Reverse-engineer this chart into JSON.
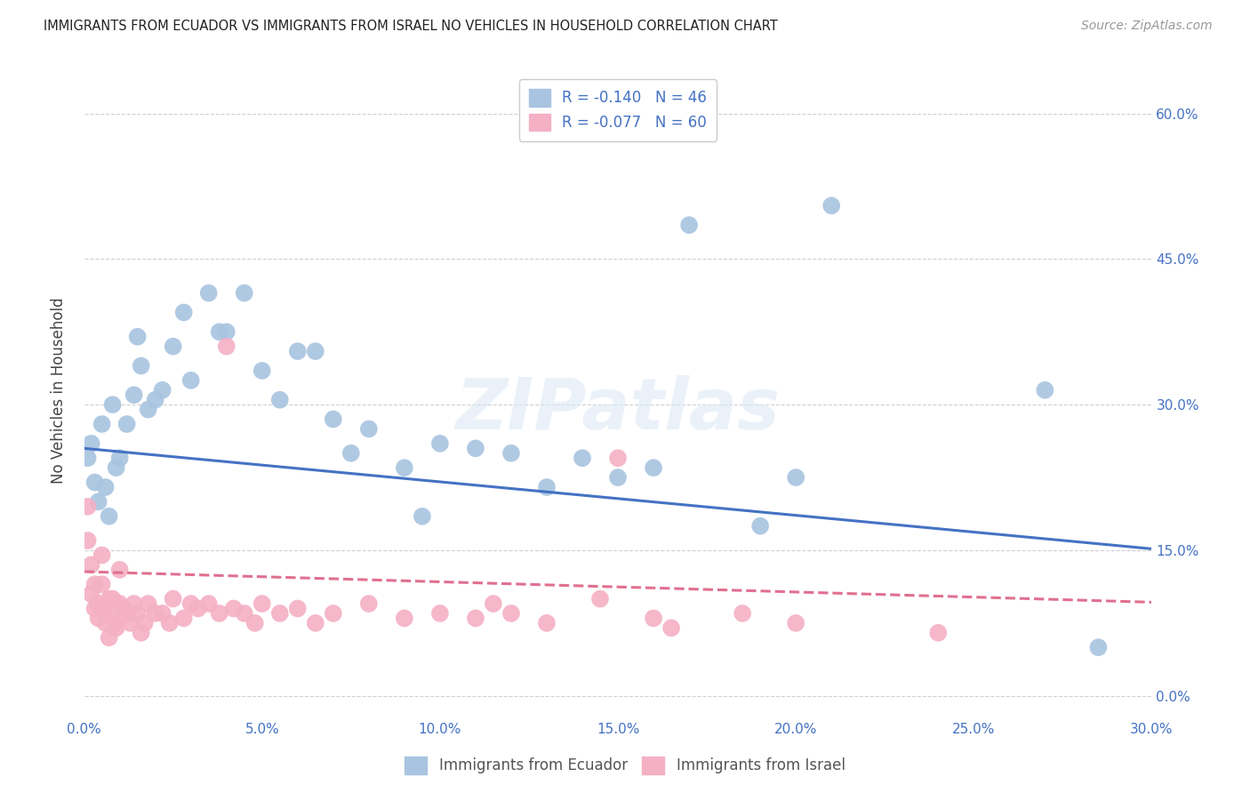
{
  "title": "IMMIGRANTS FROM ECUADOR VS IMMIGRANTS FROM ISRAEL NO VEHICLES IN HOUSEHOLD CORRELATION CHART",
  "source": "Source: ZipAtlas.com",
  "ylabel": "No Vehicles in Household",
  "legend_label_bottom": [
    "Immigrants from Ecuador",
    "Immigrants from Israel"
  ],
  "legend_r1": "R = -0.140",
  "legend_n1": "N = 46",
  "legend_r2": "R = -0.077",
  "legend_n2": "N = 60",
  "color_ecuador": "#a8c4e0",
  "color_israel": "#f4b0c4",
  "color_regression_ecuador": "#4472C4",
  "color_regression_israel": "#E07090",
  "color_legend_text": "#4472C4",
  "color_axis_ticks": "#4472C4",
  "xmin": 0.0,
  "xmax": 0.3,
  "ymin": -0.02,
  "ymax": 0.65,
  "xticks": [
    0.0,
    0.05,
    0.1,
    0.15,
    0.2,
    0.25,
    0.3
  ],
  "yticks": [
    0.0,
    0.15,
    0.3,
    0.45,
    0.6
  ],
  "xtick_labels": [
    "0.0%",
    "5.0%",
    "10.0%",
    "15.0%",
    "20.0%",
    "25.0%",
    "30.0%"
  ],
  "ytick_labels": [
    "0.0%",
    "15.0%",
    "30.0%",
    "45.0%",
    "60.0%"
  ],
  "reg_ec_intercept": 0.255,
  "reg_ec_slope": -0.345,
  "reg_is_intercept": 0.128,
  "reg_is_slope": -0.105,
  "ecuador_x": [
    0.001,
    0.002,
    0.003,
    0.004,
    0.005,
    0.006,
    0.007,
    0.008,
    0.009,
    0.01,
    0.012,
    0.014,
    0.015,
    0.016,
    0.018,
    0.02,
    0.022,
    0.025,
    0.028,
    0.03,
    0.035,
    0.038,
    0.04,
    0.045,
    0.05,
    0.055,
    0.06,
    0.065,
    0.07,
    0.075,
    0.08,
    0.09,
    0.095,
    0.1,
    0.11,
    0.12,
    0.13,
    0.14,
    0.15,
    0.16,
    0.17,
    0.19,
    0.2,
    0.21,
    0.27,
    0.285
  ],
  "ecuador_y": [
    0.245,
    0.26,
    0.22,
    0.2,
    0.28,
    0.215,
    0.185,
    0.3,
    0.235,
    0.245,
    0.28,
    0.31,
    0.37,
    0.34,
    0.295,
    0.305,
    0.315,
    0.36,
    0.395,
    0.325,
    0.415,
    0.375,
    0.375,
    0.415,
    0.335,
    0.305,
    0.355,
    0.355,
    0.285,
    0.25,
    0.275,
    0.235,
    0.185,
    0.26,
    0.255,
    0.25,
    0.215,
    0.245,
    0.225,
    0.235,
    0.485,
    0.175,
    0.225,
    0.505,
    0.315,
    0.05
  ],
  "israel_x": [
    0.001,
    0.001,
    0.002,
    0.002,
    0.003,
    0.003,
    0.004,
    0.004,
    0.005,
    0.005,
    0.006,
    0.006,
    0.007,
    0.007,
    0.008,
    0.008,
    0.009,
    0.009,
    0.01,
    0.01,
    0.011,
    0.012,
    0.013,
    0.014,
    0.015,
    0.016,
    0.017,
    0.018,
    0.02,
    0.022,
    0.024,
    0.025,
    0.028,
    0.03,
    0.032,
    0.035,
    0.038,
    0.04,
    0.042,
    0.045,
    0.048,
    0.05,
    0.055,
    0.06,
    0.065,
    0.07,
    0.08,
    0.09,
    0.1,
    0.11,
    0.115,
    0.12,
    0.13,
    0.145,
    0.15,
    0.16,
    0.165,
    0.185,
    0.2,
    0.24
  ],
  "israel_y": [
    0.195,
    0.16,
    0.105,
    0.135,
    0.09,
    0.115,
    0.08,
    0.095,
    0.145,
    0.115,
    0.075,
    0.09,
    0.06,
    0.1,
    0.085,
    0.1,
    0.07,
    0.075,
    0.13,
    0.095,
    0.09,
    0.085,
    0.075,
    0.095,
    0.085,
    0.065,
    0.075,
    0.095,
    0.085,
    0.085,
    0.075,
    0.1,
    0.08,
    0.095,
    0.09,
    0.095,
    0.085,
    0.36,
    0.09,
    0.085,
    0.075,
    0.095,
    0.085,
    0.09,
    0.075,
    0.085,
    0.095,
    0.08,
    0.085,
    0.08,
    0.095,
    0.085,
    0.075,
    0.1,
    0.245,
    0.08,
    0.07,
    0.085,
    0.075,
    0.065
  ],
  "watermark": "ZIPatlas",
  "background_color": "#ffffff",
  "grid_color": "#d0d0d0"
}
